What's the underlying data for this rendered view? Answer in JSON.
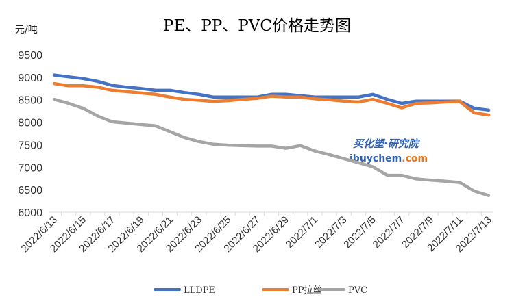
{
  "chart_data": {
    "type": "line",
    "title": "PE、PP、PVC价格走势图",
    "ylabel": "元/吨",
    "xlabel": "",
    "ylim": [
      6000,
      9500
    ],
    "yticks": [
      6000,
      6500,
      7000,
      7500,
      8000,
      8500,
      9000,
      9500
    ],
    "grid": false,
    "legend_position": "bottom",
    "x": [
      "2022/6/13",
      "2022/6/14",
      "2022/6/15",
      "2022/6/16",
      "2022/6/17",
      "2022/6/18",
      "2022/6/19",
      "2022/6/20",
      "2022/6/21",
      "2022/6/22",
      "2022/6/23",
      "2022/6/24",
      "2022/6/25",
      "2022/6/26",
      "2022/6/27",
      "2022/6/28",
      "2022/6/29",
      "2022/6/30",
      "2022/7/1",
      "2022/7/2",
      "2022/7/3",
      "2022/7/4",
      "2022/7/5",
      "2022/7/6",
      "2022/7/7",
      "2022/7/8",
      "2022/7/9",
      "2022/7/10",
      "2022/7/11",
      "2022/7/12",
      "2022/7/13"
    ],
    "xtick_labels": [
      "2022/6/13",
      "2022/6/15",
      "2022/6/17",
      "2022/6/19",
      "2022/6/21",
      "2022/6/23",
      "2022/6/25",
      "2022/6/27",
      "2022/6/29",
      "2022/7/1",
      "2022/7/3",
      "2022/7/5",
      "2022/7/7",
      "2022/7/9",
      "2022/7/11",
      "2022/7/13"
    ],
    "series": [
      {
        "name": "LLDPE",
        "color": "#4472c4",
        "values": [
          9050,
          9010,
          8970,
          8910,
          8820,
          8780,
          8750,
          8710,
          8710,
          8660,
          8620,
          8560,
          8560,
          8560,
          8560,
          8620,
          8620,
          8590,
          8560,
          8560,
          8560,
          8560,
          8620,
          8510,
          8420,
          8470,
          8470,
          8470,
          8470,
          8310,
          8270
        ]
      },
      {
        "name": "PP拉丝",
        "color": "#ed7d31",
        "values": [
          8860,
          8810,
          8810,
          8780,
          8710,
          8680,
          8650,
          8620,
          8560,
          8510,
          8490,
          8460,
          8480,
          8510,
          8530,
          8580,
          8560,
          8560,
          8520,
          8500,
          8470,
          8450,
          8510,
          8420,
          8320,
          8420,
          8430,
          8450,
          8460,
          8210,
          8160
        ]
      },
      {
        "name": "PVC",
        "color": "#a5a5a5",
        "values": [
          8510,
          8420,
          8310,
          8140,
          8010,
          7980,
          7950,
          7920,
          7790,
          7660,
          7570,
          7510,
          7490,
          7480,
          7470,
          7470,
          7420,
          7480,
          7360,
          7280,
          7190,
          7100,
          7010,
          6820,
          6820,
          6740,
          6710,
          6690,
          6660,
          6470,
          6370
        ]
      }
    ]
  },
  "watermark": {
    "cn": "买化塑·研究院",
    "en_main": "ibuychem",
    "en_suffix": ".com"
  }
}
